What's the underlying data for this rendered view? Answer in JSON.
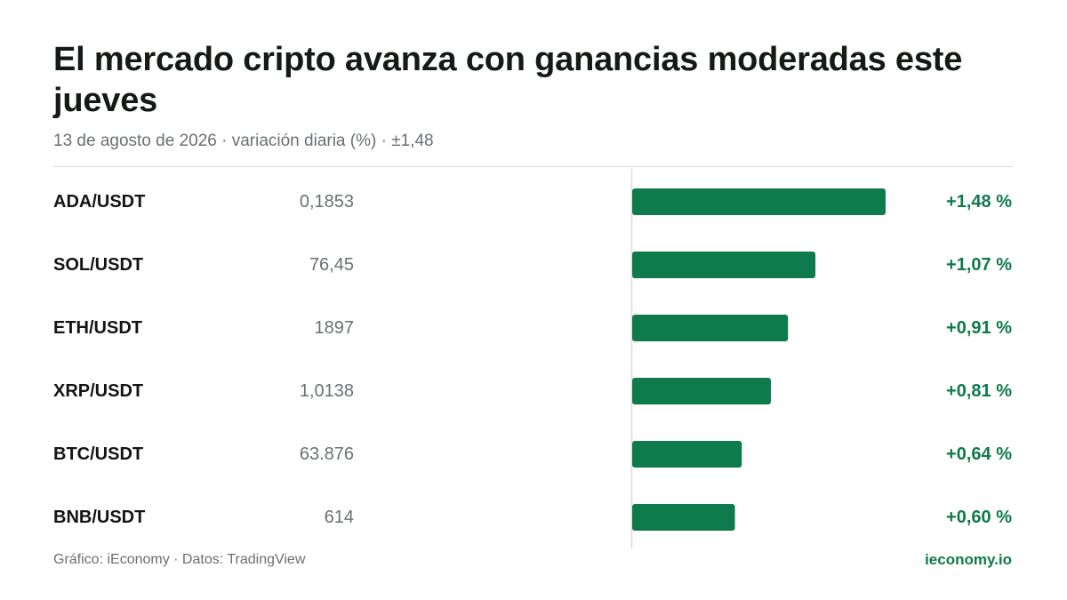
{
  "header": {
    "title": "El mercado cripto avanza con ganancias moderadas este jueves",
    "subtitle": "13 de agosto de 2026 · variación diaria (%) · ±1,48"
  },
  "footer": {
    "credit": "Gráfico: iEconomy · Datos: TradingView",
    "brand": "ieconomy.io"
  },
  "colors": {
    "bar": "#0f7a4c",
    "value_label": "#0f7a4c",
    "pair_label": "#141414",
    "price_label": "#6b6f72",
    "axis": "#d9dcdf"
  },
  "chart_data": {
    "type": "bar",
    "orientation": "horizontal",
    "categories": [
      "ADA/USDT",
      "SOL/USDT",
      "ETH/USDT",
      "XRP/USDT",
      "BTC/USDT",
      "BNB/USDT"
    ],
    "prices": [
      "0,1853",
      "76,45",
      "1897",
      "1,0138",
      "63.876",
      "614"
    ],
    "values": [
      1.48,
      1.07,
      0.91,
      0.81,
      0.64,
      0.6
    ],
    "value_labels": [
      "+1,48 %",
      "+1,07 %",
      "+0,91 %",
      "+0,81 %",
      "+0,64 %",
      "+0,60 %"
    ],
    "xlim": [
      -1.48,
      1.48
    ],
    "grid": false
  }
}
